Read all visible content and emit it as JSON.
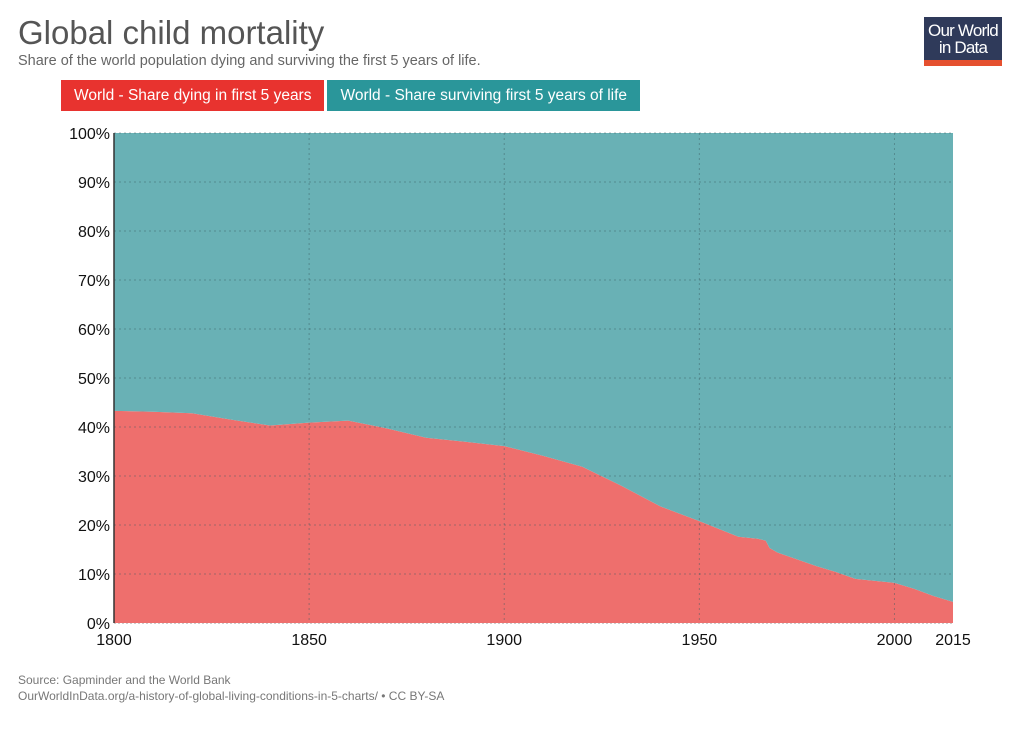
{
  "header": {
    "title": "Global child mortality",
    "subtitle": "Share of the world population dying and surviving the first 5 years of life.",
    "logo_line1": "Our World",
    "logo_line2": "in Data"
  },
  "footer": {
    "source": "Source: Gapminder and the World Bank",
    "url_license": "OurWorldInData.org/a-history-of-global-living-conditions-in-5-charts/ • CC BY-SA"
  },
  "chart_data": {
    "type": "area",
    "stacked": true,
    "title": "Global child mortality",
    "subtitle": "Share of the world population dying and surviving the first 5 years of life.",
    "xlabel": "",
    "ylabel": "",
    "xlim": [
      1800,
      2015
    ],
    "ylim": [
      0,
      100
    ],
    "grid": true,
    "legend_position": "top-left",
    "x_ticks": [
      1800,
      1850,
      1900,
      1950,
      2000,
      2015
    ],
    "x_tick_labels": [
      "1800",
      "1850",
      "1900",
      "1950",
      "2000",
      "2015"
    ],
    "y_ticks": [
      0,
      10,
      20,
      30,
      40,
      50,
      60,
      70,
      80,
      90,
      100
    ],
    "y_tick_labels": [
      "0%",
      "10%",
      "20%",
      "30%",
      "40%",
      "50%",
      "60%",
      "70%",
      "80%",
      "90%",
      "100%"
    ],
    "x": [
      1800,
      1810,
      1820,
      1830,
      1840,
      1850,
      1860,
      1870,
      1880,
      1890,
      1900,
      1910,
      1920,
      1930,
      1940,
      1950,
      1960,
      1965,
      1967,
      1968,
      1970,
      1980,
      1985,
      1990,
      1995,
      2000,
      2005,
      2010,
      2015
    ],
    "series": [
      {
        "name": "World - Share dying in first 5 years",
        "color": "#ee6f6d",
        "legend_color": "#e8332f",
        "values": [
          43.3,
          43.1,
          42.8,
          41.5,
          40.3,
          40.9,
          41.3,
          39.7,
          37.8,
          37.0,
          36.1,
          34.1,
          31.9,
          28.0,
          23.8,
          20.8,
          17.6,
          17.2,
          16.8,
          15.3,
          14.4,
          11.6,
          10.4,
          9.0,
          8.6,
          8.2,
          7.0,
          5.5,
          4.3
        ]
      },
      {
        "name": "World - Share surviving first 5 years of life",
        "color": "#69b1b5",
        "legend_color": "#2a969a",
        "values": [
          56.7,
          56.9,
          57.2,
          58.5,
          59.7,
          59.1,
          58.7,
          60.3,
          62.2,
          63.0,
          63.9,
          65.9,
          68.1,
          72.0,
          76.2,
          79.2,
          82.4,
          82.8,
          83.2,
          84.7,
          85.6,
          88.4,
          89.6,
          91.0,
          91.4,
          91.8,
          93.0,
          94.5,
          95.7
        ]
      }
    ]
  }
}
